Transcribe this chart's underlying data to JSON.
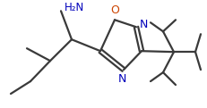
{
  "bg_color": "#ffffff",
  "line_color": "#3a3a3a",
  "bond_width": 1.6,
  "font_size_nh2": 8.5,
  "font_size_hetero": 9.0,
  "text_color": "#000000",
  "o_color": "#cc4400",
  "n_color": "#0000bb",
  "figsize": [
    2.32,
    1.21
  ],
  "dpi": 100,
  "xlim": [
    0,
    232
  ],
  "ylim": [
    0,
    121
  ]
}
